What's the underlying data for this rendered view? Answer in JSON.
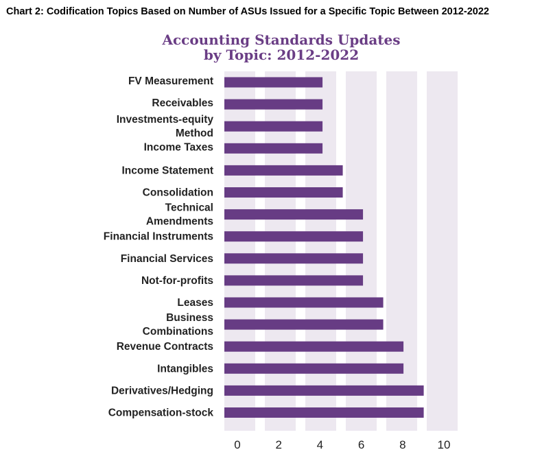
{
  "header": "Chart 2: Codification Topics Based on Number of ASUs Issued for a Specific Topic Between 2012-2022",
  "chart_data": {
    "type": "bar",
    "orientation": "horizontal",
    "title": "Accounting Standards Updates",
    "subtitle": "by Topic: 2012-2022",
    "categories": [
      [
        "FV Measurement"
      ],
      [
        "Receivables"
      ],
      [
        "Investments-equity",
        "Method"
      ],
      [
        "Income Taxes"
      ],
      [
        "Income Statement"
      ],
      [
        "Consolidation"
      ],
      [
        "Technical",
        "Amendments"
      ],
      [
        "Financial Instruments"
      ],
      [
        "Financial Services"
      ],
      [
        "Not-for-profits"
      ],
      [
        "Leases"
      ],
      [
        "Business",
        "Combinations"
      ],
      [
        "Revenue Contracts"
      ],
      [
        "Intangibles"
      ],
      [
        "Derivatives/Hedging"
      ],
      [
        "Compensation-stock"
      ]
    ],
    "values": [
      4,
      4,
      4,
      4,
      5,
      5,
      6,
      6,
      6,
      6,
      7,
      7,
      8,
      8,
      9,
      9
    ],
    "xticks": [
      "0",
      "2",
      "4",
      "6",
      "8",
      "10"
    ],
    "xlim": [
      0,
      10
    ],
    "xlabel": "",
    "ylabel": "",
    "grid": "alternating vertical bands",
    "bar_color": "#673c84",
    "band_color": "#ede8f0"
  }
}
